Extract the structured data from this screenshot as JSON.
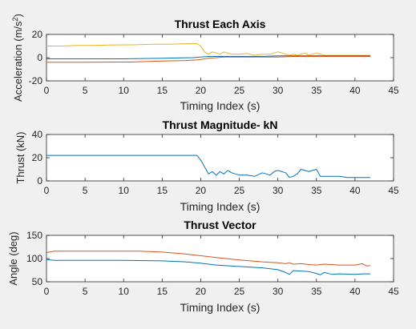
{
  "chart_data": [
    {
      "type": "line",
      "title": "Thrust Each Axis",
      "xlabel": "Timing Index (s)",
      "ylabel_main": "Acceleration (m/s",
      "ylabel_sup": "2",
      "ylabel_tail": ")",
      "xlim": [
        0,
        45
      ],
      "ylim": [
        -20,
        20
      ],
      "xticks": [
        "0",
        "5",
        "10",
        "15",
        "20",
        "25",
        "30",
        "35",
        "40",
        "45"
      ],
      "yticks": [
        "-20",
        "0",
        "20"
      ],
      "xtick_values": [
        0,
        5,
        10,
        15,
        20,
        25,
        30,
        35,
        40,
        45
      ],
      "ytick_values": [
        -20,
        0,
        20
      ],
      "grid": false,
      "series": [
        {
          "color": "#EDB120",
          "x": [
            0,
            2,
            4,
            6,
            8,
            10,
            11,
            12,
            14,
            16,
            18,
            19.5,
            20,
            20.5,
            21,
            21.5,
            22,
            22.5,
            23,
            23.5,
            24,
            25,
            26,
            27,
            28,
            29,
            30,
            30.5,
            31,
            31.5,
            32,
            32.5,
            33,
            33.5,
            34,
            34.5,
            35,
            35.5,
            36,
            37,
            38,
            39,
            40,
            41,
            42
          ],
          "y": [
            10,
            10,
            10.5,
            10.5,
            10.8,
            11,
            11,
            11.2,
            11.5,
            11.5,
            12,
            12,
            10,
            5,
            3,
            5,
            4,
            3,
            5,
            4,
            3,
            3,
            3.5,
            2,
            3,
            3,
            5,
            4,
            3,
            2,
            3,
            2,
            3,
            4,
            2,
            3,
            4,
            3,
            2,
            2,
            2,
            2,
            2,
            2,
            2
          ]
        },
        {
          "color": "#0072BD",
          "x": [
            0,
            5,
            10,
            15,
            19,
            20,
            21,
            22,
            25,
            28,
            30,
            32,
            35,
            38,
            40,
            42
          ],
          "y": [
            -1,
            -1,
            -1,
            -0.5,
            0,
            0.5,
            1,
            1,
            1,
            1,
            1.5,
            1.5,
            1.5,
            1.5,
            1.5,
            1.5
          ]
        },
        {
          "color": "#D95319",
          "x": [
            0,
            5,
            10,
            11,
            12,
            15,
            18,
            19.5,
            20,
            21,
            22,
            23,
            25,
            28,
            30,
            32,
            35,
            38,
            40,
            42
          ],
          "y": [
            -4,
            -4,
            -3.8,
            -3.8,
            -3.5,
            -3,
            -2.5,
            -2,
            -1.5,
            -0.5,
            0,
            0.5,
            0.5,
            0.5,
            0.5,
            1,
            1,
            1,
            1,
            1
          ]
        }
      ]
    },
    {
      "type": "line",
      "title": "Thrust Magnitude- kN",
      "xlabel": "Timing Index (s)",
      "ylabel": "Thrust (kN)",
      "xlim": [
        0,
        45
      ],
      "ylim": [
        0,
        40
      ],
      "xticks": [
        "0",
        "5",
        "10",
        "15",
        "20",
        "25",
        "30",
        "35",
        "40",
        "45"
      ],
      "yticks": [
        "0",
        "20",
        "40"
      ],
      "xtick_values": [
        0,
        5,
        10,
        15,
        20,
        25,
        30,
        35,
        40,
        45
      ],
      "ytick_values": [
        0,
        20,
        40
      ],
      "grid": false,
      "series": [
        {
          "color": "#0072BD",
          "x": [
            0,
            5,
            10,
            15,
            19.5,
            20,
            20.5,
            21,
            21.5,
            22,
            22.5,
            23,
            23.5,
            24,
            25,
            26,
            27,
            28,
            29,
            29.5,
            30,
            31,
            31.5,
            32,
            32.5,
            33,
            34,
            34.5,
            35,
            35.5,
            36,
            37,
            38,
            39,
            40,
            41,
            42
          ],
          "y": [
            22,
            22,
            22,
            22,
            22,
            18,
            12,
            6,
            8,
            5,
            8,
            6,
            9,
            7,
            5,
            5,
            4,
            7,
            5,
            8,
            9,
            7,
            3,
            4,
            6,
            10,
            8,
            9,
            10,
            4,
            4,
            4,
            4,
            3,
            3,
            3,
            3
          ]
        }
      ]
    },
    {
      "type": "line",
      "title": "Thrust Vector",
      "xlabel": "Timing Index (s)",
      "ylabel": "Angle (deg)",
      "xlim": [
        0,
        45
      ],
      "ylim": [
        50,
        150
      ],
      "xticks": [
        "0",
        "5",
        "10",
        "15",
        "20",
        "25",
        "30",
        "35",
        "40",
        "45"
      ],
      "yticks": [
        "50",
        "100",
        "150"
      ],
      "xtick_values": [
        0,
        5,
        10,
        15,
        20,
        25,
        30,
        35,
        40,
        45
      ],
      "ytick_values": [
        50,
        100,
        150
      ],
      "grid": false,
      "series": [
        {
          "color": "#D95319",
          "x": [
            0,
            1,
            5,
            10,
            12,
            15,
            18,
            20,
            22,
            25,
            28,
            30,
            31,
            31.5,
            32,
            33,
            34,
            35,
            36,
            38,
            40,
            41,
            41.5,
            42
          ],
          "y": [
            113,
            116,
            116,
            116,
            116,
            114,
            110,
            106,
            102,
            97,
            93,
            91,
            89,
            91,
            88,
            89,
            87,
            86,
            88,
            86,
            86,
            89,
            84,
            85
          ]
        },
        {
          "color": "#0072BD",
          "x": [
            0,
            1,
            5,
            10,
            15,
            18,
            20,
            22,
            25,
            28,
            30,
            31,
            31.5,
            32,
            34,
            35,
            35.5,
            36,
            37,
            38,
            40,
            41,
            42
          ],
          "y": [
            98,
            96,
            96,
            96,
            95,
            93,
            90,
            86,
            83,
            80,
            76,
            70,
            66,
            74,
            72,
            68,
            65,
            70,
            66,
            67,
            66,
            67,
            67
          ]
        }
      ]
    }
  ]
}
